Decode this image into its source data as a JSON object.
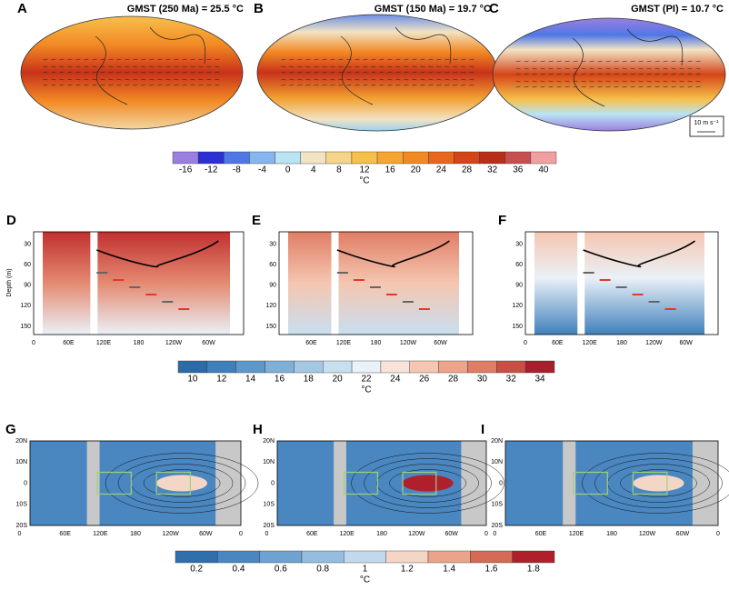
{
  "top_panels": [
    {
      "label": "A",
      "title": "GMST (250 Ma) = 25.5 °C"
    },
    {
      "label": "B",
      "title": "GMST (150 Ma) = 19.7 °C"
    },
    {
      "label": "C",
      "title": "GMST (PI) = 10.7 °C"
    }
  ],
  "wind_scale": "10 m s⁻¹",
  "colorbar_1": {
    "ticks": [
      -16,
      -12,
      -8,
      -4,
      0,
      4,
      8,
      12,
      16,
      20,
      24,
      28,
      32,
      36,
      40
    ],
    "unit": "°C",
    "colors": [
      "#9a7fe0",
      "#2b2fd4",
      "#4f78e6",
      "#86b6ef",
      "#b9e4f4",
      "#f2e3c3",
      "#f6d58a",
      "#f7c04a",
      "#f7a531",
      "#f28a24",
      "#e8671d",
      "#d44518",
      "#b82e16",
      "#c84f4f",
      "#f0a0a0"
    ]
  },
  "depth_axis": {
    "label": "Depth (m)",
    "ticks": [
      30,
      60,
      90,
      120,
      150
    ]
  },
  "middle_panels": [
    {
      "label": "D",
      "x_ticks": [
        "0",
        "60E",
        "120E",
        "180",
        "120W",
        "60W"
      ]
    },
    {
      "label": "E",
      "x_ticks": [
        "60E",
        "120E",
        "180",
        "120W",
        "60W"
      ]
    },
    {
      "label": "F",
      "x_ticks": [
        "0",
        "60E",
        "120E",
        "180",
        "120W",
        "60W"
      ]
    }
  ],
  "colorbar_2": {
    "ticks": [
      10,
      12,
      14,
      16,
      18,
      20,
      22,
      24,
      26,
      28,
      30,
      32,
      34
    ],
    "unit": "°C",
    "colors": [
      "#2c6aa8",
      "#3f80bb",
      "#5e98c9",
      "#7fb0d6",
      "#a3c8e3",
      "#c8dff0",
      "#eaf1f7",
      "#f9e3d9",
      "#f5c6b0",
      "#eda48a",
      "#e07d65",
      "#cb4e45",
      "#a91e2c"
    ]
  },
  "lat_axis": {
    "ticks": [
      "20N",
      "10N",
      "0",
      "10S",
      "20S"
    ]
  },
  "bottom_panels": [
    {
      "label": "G",
      "x_ticks": [
        "0",
        "60E",
        "120E",
        "180",
        "120W",
        "60W",
        "0"
      ]
    },
    {
      "label": "H",
      "x_ticks": [
        "0",
        "60E",
        "120E",
        "180",
        "120W",
        "60W",
        "0"
      ]
    },
    {
      "label": "I",
      "x_ticks": [
        "0",
        "60E",
        "120E",
        "180",
        "120W",
        "60W",
        "0"
      ]
    }
  ],
  "colorbar_3": {
    "ticks": [
      0.2,
      0.4,
      0.6,
      0.8,
      1,
      1.2,
      1.4,
      1.6,
      1.8
    ],
    "unit": "°C",
    "colors": [
      "#2f6fac",
      "#4a87c1",
      "#6da2d1",
      "#95bde0",
      "#c2d9ed",
      "#f4d6c6",
      "#e9a489",
      "#d66a55",
      "#b0202c"
    ]
  }
}
